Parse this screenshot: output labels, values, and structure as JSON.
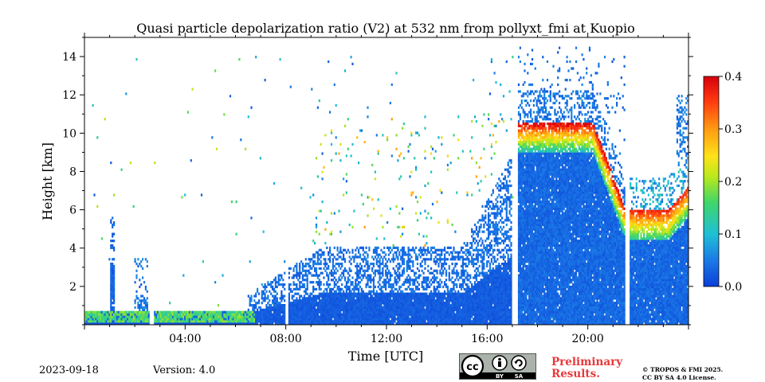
{
  "footer": {
    "date": "2023-09-18",
    "version": "Version: 4.0",
    "preliminary_line1": "Preliminary",
    "preliminary_line2": "Results.",
    "copyright_line1": "© TROPOS & FMI 2025.",
    "copyright_line2": "CC BY SA 4.0 License.",
    "license_badge": {
      "cc": "cc",
      "by": "BY",
      "sa": "SA"
    }
  },
  "chart_data": {
    "type": "heatmap",
    "title": "Quasi particle depolarization ratio (V2) at 532 nm from pollyxt_fmi at Kuopio",
    "xlabel": "Time [UTC]",
    "ylabel": "Height [km]",
    "xlim_hours": [
      0,
      24
    ],
    "ylim": [
      0,
      15
    ],
    "x_ticks": [
      "04:00",
      "08:00",
      "12:00",
      "16:00",
      "20:00"
    ],
    "x_tick_hours": [
      4,
      8,
      12,
      16,
      20
    ],
    "y_ticks": [
      2,
      4,
      6,
      8,
      10,
      12,
      14
    ],
    "colorbar": {
      "range": [
        0.0,
        0.4
      ],
      "ticks": [
        "0.0",
        "0.1",
        "0.2",
        "0.3",
        "0.4"
      ],
      "tick_values": [
        0.0,
        0.1,
        0.2,
        0.3,
        0.4
      ],
      "colormap": [
        "#0b3ed8",
        "#1a78e6",
        "#1fc0d6",
        "#3fd66a",
        "#b8e81c",
        "#ffe21a",
        "#ff9a12",
        "#ff3b10",
        "#d7000d"
      ]
    },
    "data_gaps_hours": [
      [
        2.6,
        2.75
      ],
      [
        7.97,
        8.07
      ],
      [
        17.05,
        17.25
      ],
      [
        21.5,
        21.65
      ]
    ],
    "features": [
      {
        "time_start": 0.0,
        "time_end": 6.8,
        "base_km": 0.0,
        "top_km": 0.7,
        "ratio": 0.15
      },
      {
        "time_start": 1.0,
        "time_end": 1.2,
        "base_km": 0.3,
        "top_km": 6.0,
        "ratio": 0.02
      },
      {
        "time_start": 6.5,
        "time_end": 17.0,
        "base_km": 0.0,
        "top_km": 3.0,
        "ratio": 0.02
      },
      {
        "time_start": 17.25,
        "time_end": 21.5,
        "base_km": 0.0,
        "top_km": 9.5,
        "ratio": 0.03
      },
      {
        "time_start": 17.5,
        "time_end": 20.5,
        "base_km": 7.0,
        "top_km": 11.0,
        "ratio": 0.32
      },
      {
        "time_start": 21.65,
        "time_end": 24.0,
        "base_km": 0.0,
        "top_km": 5.0,
        "ratio": 0.03
      },
      {
        "time_start": 22.0,
        "time_end": 24.0,
        "base_km": 4.5,
        "top_km": 7.0,
        "ratio": 0.32
      }
    ]
  }
}
